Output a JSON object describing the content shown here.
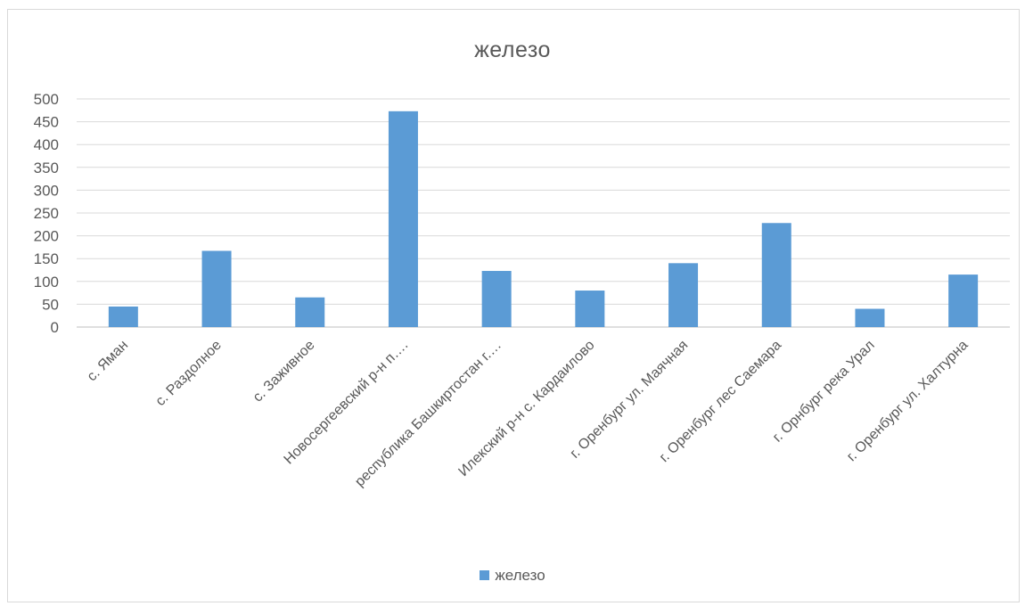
{
  "chart_data": {
    "type": "bar",
    "title": "железо",
    "categories": [
      "с. Яман",
      "с. Раздолное",
      "с. Заживное",
      "Новосергеевский р-н п….",
      "республика Башкиртостан г.…",
      "Илекский р-н с. Кардаилово",
      "г. Оренбург ул. Маячная",
      "г. Оренбург лес Саемара",
      "г. Орнбург река Урал",
      "г. Оренбург ул. Халтурна"
    ],
    "series": [
      {
        "name": "железо",
        "values": [
          45,
          167,
          65,
          473,
          123,
          80,
          140,
          228,
          40,
          115
        ],
        "color": "#5b9bd5"
      }
    ],
    "ylim": [
      0,
      500
    ],
    "yticks": [
      0,
      50,
      100,
      150,
      200,
      250,
      300,
      350,
      400,
      450,
      500
    ],
    "xlabel": "",
    "ylabel": "",
    "grid": true,
    "legend_position": "bottom"
  }
}
